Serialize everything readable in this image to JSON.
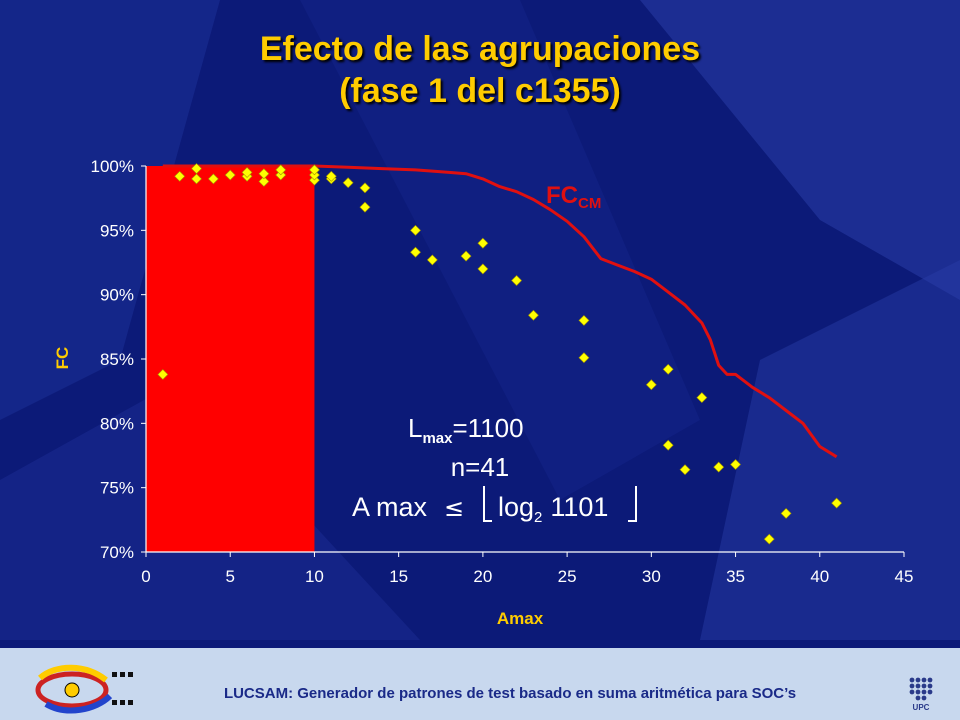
{
  "slide": {
    "title_line1": "Efecto de las agrupaciones",
    "title_line2": "(fase 1 del c1355)",
    "footer": "LUCSAM: Generador de patrones de test basado en suma aritmética para SOC’s",
    "logo_right_text": "UPC"
  },
  "colors": {
    "background": "#0c1a78",
    "title": "#ffcc00",
    "region": "#ff0000",
    "curve": "#e01010",
    "points": "#ffff00",
    "text": "#ffffff"
  },
  "chart_data": {
    "type": "scatter",
    "xlabel": "Amax",
    "ylabel": "FC",
    "xlim": [
      0,
      45
    ],
    "ylim": [
      70,
      100
    ],
    "x_ticks": [
      "0",
      "5",
      "10",
      "15",
      "20",
      "25",
      "30",
      "35",
      "40",
      "45"
    ],
    "y_ticks": [
      "70%",
      "75%",
      "80%",
      "85%",
      "90%",
      "95%",
      "100%"
    ],
    "grid": false,
    "region": {
      "x_from": 0,
      "x_to": 10,
      "y_from": 70,
      "y_to": 100
    },
    "curve": {
      "label": "FC",
      "label_sub": "CM",
      "points": [
        [
          1,
          100
        ],
        [
          5,
          100
        ],
        [
          10,
          100
        ],
        [
          12,
          99.9
        ],
        [
          14,
          99.8
        ],
        [
          16,
          99.7
        ],
        [
          18,
          99.5
        ],
        [
          19,
          99.4
        ],
        [
          20,
          99.0
        ],
        [
          21,
          98.4
        ],
        [
          22,
          98.0
        ],
        [
          23,
          97.4
        ],
        [
          24,
          96.6
        ],
        [
          25,
          95.7
        ],
        [
          26,
          94.5
        ],
        [
          27,
          92.8
        ],
        [
          28,
          92.3
        ],
        [
          29,
          91.8
        ],
        [
          30,
          91.2
        ],
        [
          31,
          90.2
        ],
        [
          32,
          89.2
        ],
        [
          33,
          87.8
        ],
        [
          33.5,
          86.5
        ],
        [
          34,
          84.5
        ],
        [
          34.5,
          83.8
        ],
        [
          35,
          83.8
        ],
        [
          36,
          82.8
        ],
        [
          37,
          82.0
        ],
        [
          38,
          81.0
        ],
        [
          39,
          80.0
        ],
        [
          40,
          78.2
        ],
        [
          41,
          77.4
        ]
      ]
    },
    "series": [
      {
        "points": [
          [
            1,
            83.8
          ],
          [
            2,
            99.2
          ],
          [
            3,
            99.0
          ],
          [
            3,
            99.8
          ],
          [
            4,
            99.0
          ],
          [
            5,
            99.3
          ],
          [
            6,
            99.2
          ],
          [
            6,
            99.5
          ],
          [
            7,
            98.8
          ],
          [
            7,
            99.4
          ],
          [
            8,
            99.3
          ],
          [
            8,
            99.7
          ],
          [
            10,
            98.9
          ],
          [
            10,
            99.3
          ],
          [
            10,
            99.7
          ],
          [
            11,
            99.0
          ],
          [
            11,
            99.2
          ],
          [
            12,
            98.7
          ],
          [
            13,
            98.3
          ],
          [
            13,
            96.8
          ],
          [
            16,
            95.0
          ],
          [
            16,
            93.3
          ],
          [
            17,
            92.7
          ],
          [
            19,
            93.0
          ],
          [
            20,
            94.0
          ],
          [
            20,
            92.0
          ],
          [
            22,
            91.1
          ],
          [
            23,
            88.4
          ],
          [
            26,
            88.0
          ],
          [
            26,
            85.1
          ],
          [
            30,
            83.0
          ],
          [
            31,
            84.2
          ],
          [
            31,
            78.3
          ],
          [
            32,
            76.4
          ],
          [
            33,
            82.0
          ],
          [
            34,
            76.6
          ],
          [
            35,
            76.8
          ],
          [
            37,
            71.0
          ],
          [
            38,
            73.0
          ],
          [
            41,
            73.8
          ]
        ]
      }
    ],
    "annotations": {
      "lmax_L": "L",
      "lmax_sub": "max",
      "lmax_value": "=1100",
      "n": "n=41",
      "formula_a": "A max",
      "formula_leq": "≤",
      "formula_log": "log",
      "formula_log_sub": "2",
      "formula_num": "1101"
    }
  }
}
